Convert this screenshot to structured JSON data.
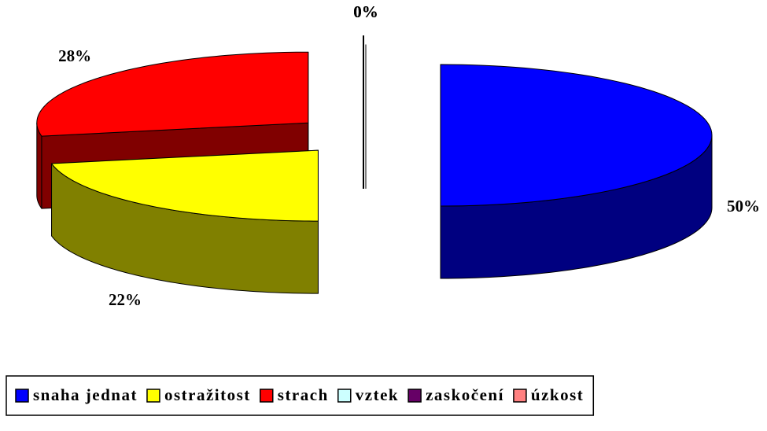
{
  "chart_data": {
    "type": "pie3d",
    "categories": [
      "snaha jednat",
      "ostražitost",
      "strach",
      "vztek",
      "zaskočení",
      "úzkost"
    ],
    "values": [
      50,
      22,
      28,
      0,
      0,
      0
    ],
    "value_labels": [
      "50%",
      "22%",
      "28%",
      "0%",
      "0%",
      "0%"
    ],
    "colors": [
      "#0000ff",
      "#ffff00",
      "#ff0000",
      "#ccffff",
      "#660066",
      "#ff8080"
    ],
    "legend": "bottom"
  }
}
